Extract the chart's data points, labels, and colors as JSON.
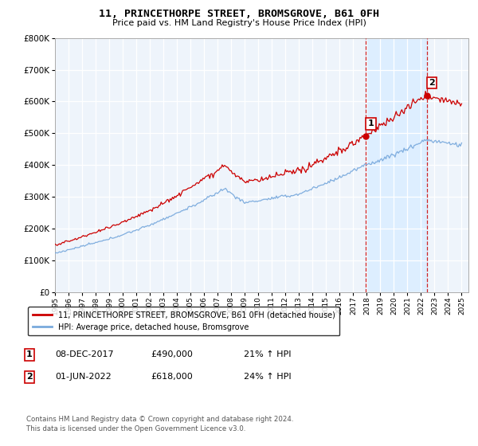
{
  "title": "11, PRINCETHORPE STREET, BROMSGROVE, B61 0FH",
  "subtitle": "Price paid vs. HM Land Registry's House Price Index (HPI)",
  "ylim": [
    0,
    800000
  ],
  "yticks": [
    0,
    100000,
    200000,
    300000,
    400000,
    500000,
    600000,
    700000,
    800000
  ],
  "xlim_start": 1995.0,
  "xlim_end": 2025.5,
  "transaction1_year": 2017.92,
  "transaction1_price": 490000,
  "transaction2_year": 2022.42,
  "transaction2_price": 618000,
  "line_color_property": "#cc0000",
  "line_color_hpi": "#7aaadd",
  "shade_color": "#ddeeff",
  "vline_color": "#cc0000",
  "grid_color": "#cccccc",
  "bg_color": "#eef4fb",
  "legend_label_property": "11, PRINCETHORPE STREET, BROMSGROVE, B61 0FH (detached house)",
  "legend_label_hpi": "HPI: Average price, detached house, Bromsgrove",
  "annotation1_label": "1",
  "annotation1_date": "08-DEC-2017",
  "annotation1_price": "£490,000",
  "annotation1_hpi": "21% ↑ HPI",
  "annotation2_label": "2",
  "annotation2_date": "01-JUN-2022",
  "annotation2_price": "£618,000",
  "annotation2_hpi": "24% ↑ HPI",
  "footer": "Contains HM Land Registry data © Crown copyright and database right 2024.\nThis data is licensed under the Open Government Licence v3.0."
}
